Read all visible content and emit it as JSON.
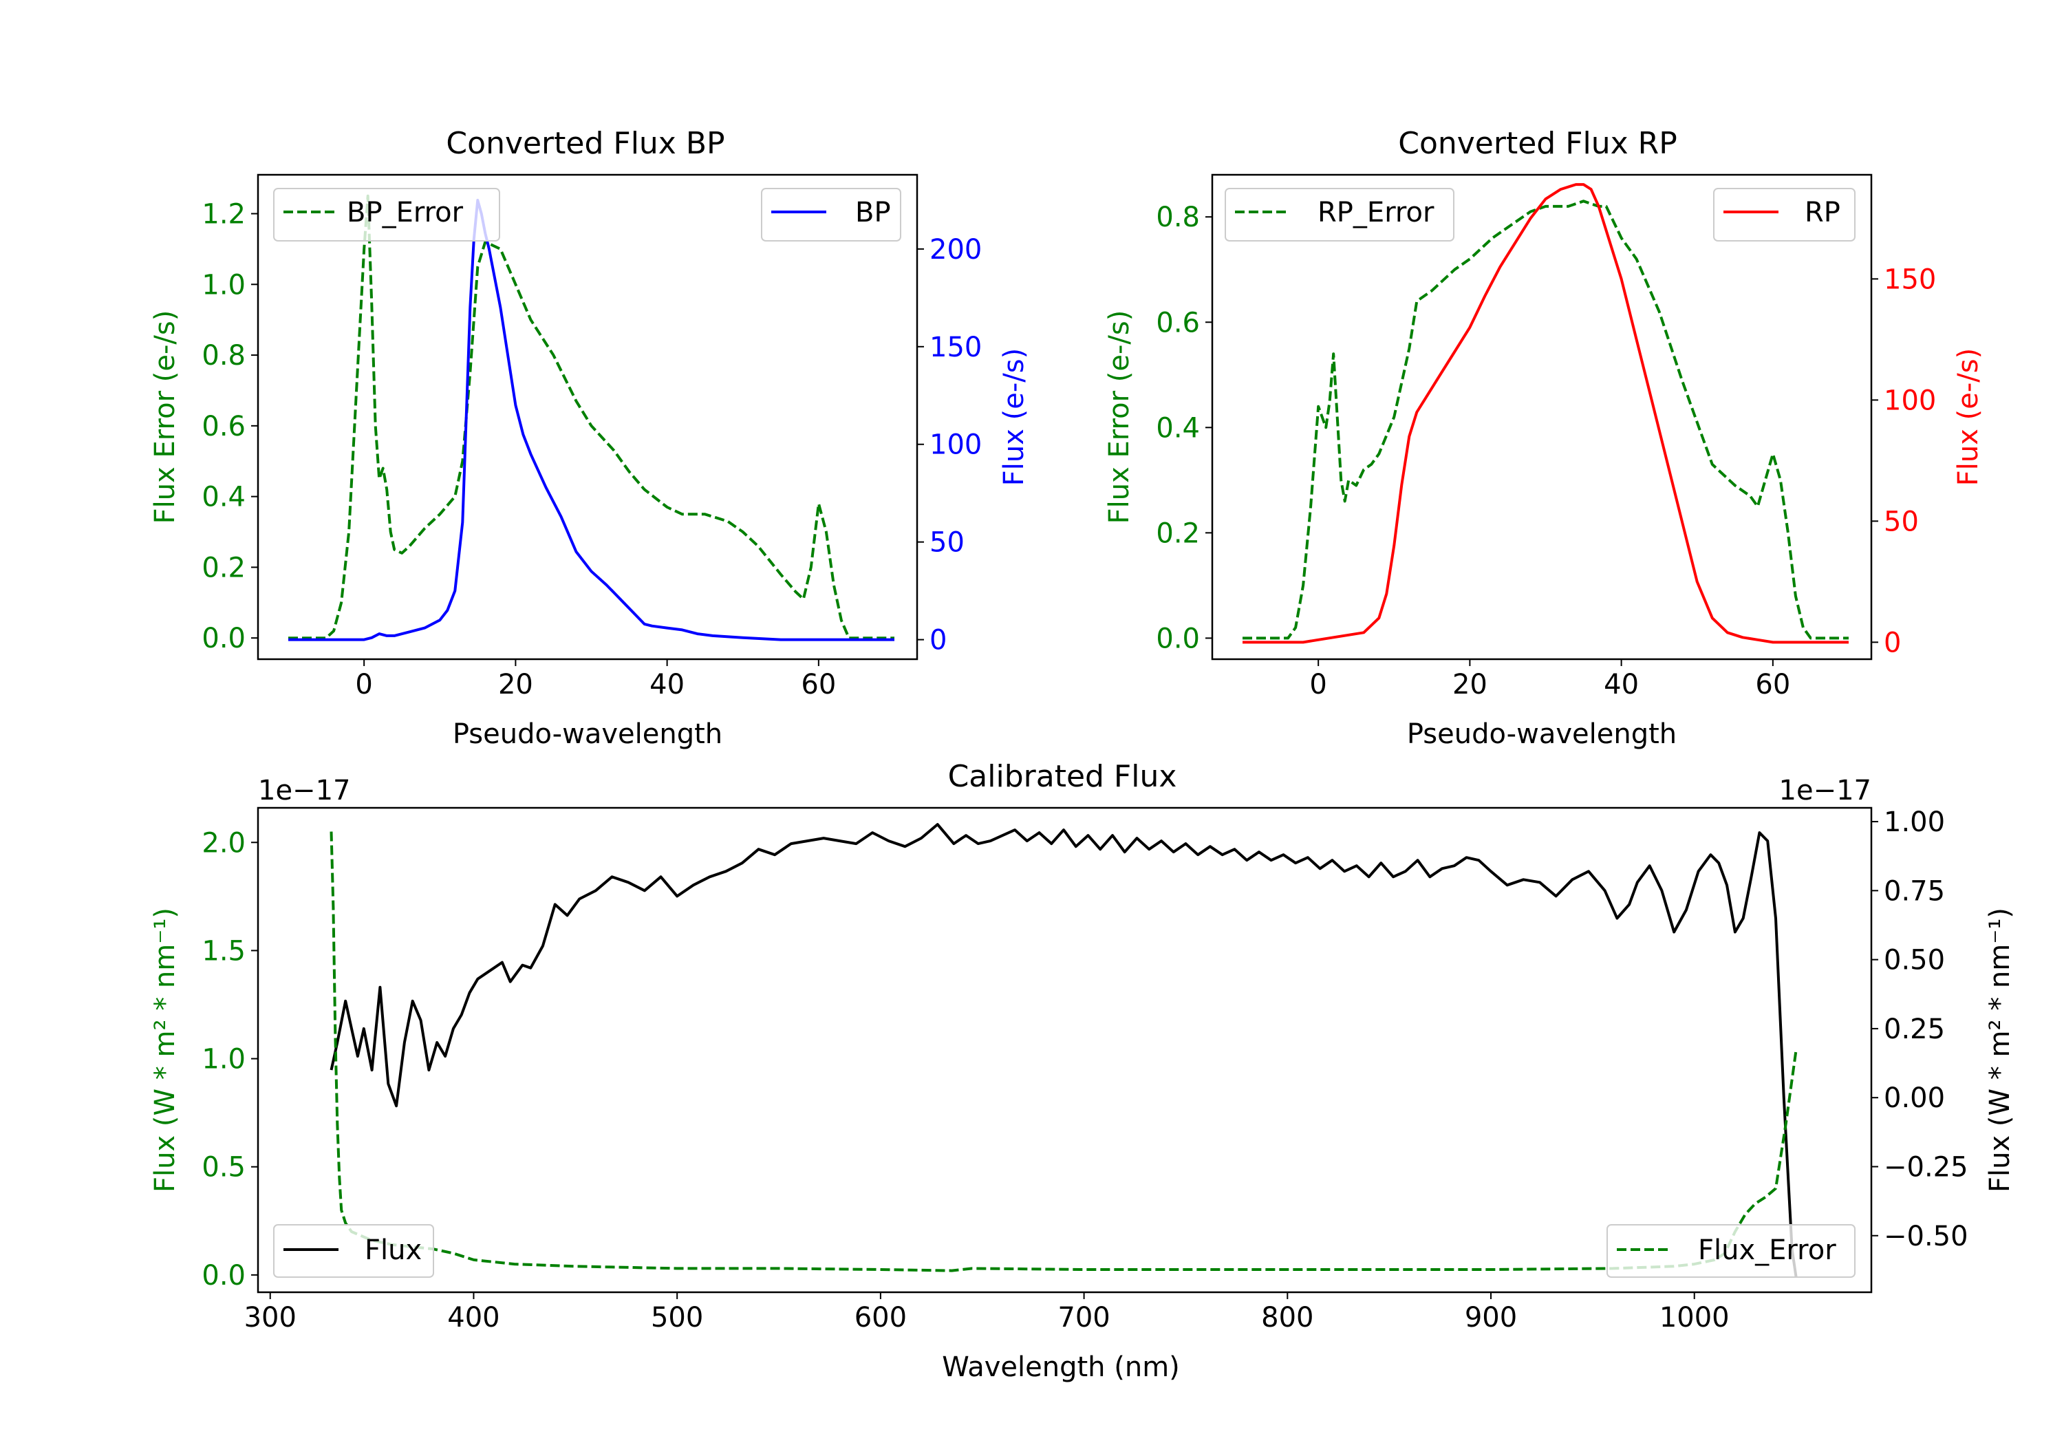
{
  "chart_data": [
    {
      "type": "line",
      "title": "Converted Flux BP",
      "xlabel": "Pseudo-wavelength",
      "ylabel_left": "Flux Error (e-/s)",
      "ylabel_right": "Flux (e-/s)",
      "xlim": [
        -14,
        73
      ],
      "ylim_left": [
        -0.06,
        1.31
      ],
      "ylim_right": [
        -10,
        238
      ],
      "xticks": [
        0,
        20,
        40,
        60
      ],
      "xtick_labels": [
        "0",
        "20",
        "40",
        "60"
      ],
      "yticks_left": [
        0.0,
        0.2,
        0.4,
        0.6,
        0.8,
        1.0,
        1.2
      ],
      "yticks_left_labels": [
        "0.0",
        "0.2",
        "0.4",
        "0.6",
        "0.8",
        "1.0",
        "1.2"
      ],
      "yticks_right": [
        0,
        50,
        100,
        150,
        200
      ],
      "yticks_right_labels": [
        "0",
        "50",
        "100",
        "150",
        "200"
      ],
      "legend_left": "upper-left",
      "legend_right": "upper-right",
      "series": [
        {
          "name": "BP_Error",
          "axis": "left",
          "color": "#008000",
          "style": "dashed",
          "x": [
            -10,
            -5,
            -4,
            -3,
            -2,
            -1,
            0,
            0.5,
            1,
            1.5,
            2,
            2.5,
            3,
            3.5,
            4,
            5,
            6,
            8,
            10,
            12,
            13,
            14,
            15,
            16,
            18,
            20,
            22,
            25,
            28,
            30,
            33,
            35,
            37,
            40,
            42,
            45,
            48,
            50,
            52,
            55,
            57,
            58,
            59,
            60,
            61,
            62,
            63,
            64,
            66,
            70
          ],
          "values": [
            0,
            0,
            0.02,
            0.1,
            0.3,
            0.7,
            1.1,
            1.25,
            0.95,
            0.6,
            0.45,
            0.48,
            0.42,
            0.3,
            0.25,
            0.24,
            0.26,
            0.31,
            0.35,
            0.4,
            0.5,
            0.75,
            1.05,
            1.12,
            1.1,
            1.0,
            0.9,
            0.8,
            0.67,
            0.6,
            0.53,
            0.47,
            0.42,
            0.37,
            0.35,
            0.35,
            0.33,
            0.3,
            0.26,
            0.18,
            0.13,
            0.11,
            0.2,
            0.38,
            0.3,
            0.15,
            0.05,
            0,
            0,
            0
          ]
        },
        {
          "name": "BP",
          "axis": "right",
          "color": "#0000ff",
          "style": "solid",
          "x": [
            -10,
            -5,
            0,
            1,
            2,
            3,
            4,
            6,
            8,
            10,
            11,
            12,
            13,
            14,
            14.5,
            15,
            15.5,
            16,
            16.5,
            17,
            18,
            19,
            20,
            21,
            22,
            24,
            26,
            28,
            30,
            32,
            34,
            36,
            37,
            38,
            40,
            42,
            44,
            46,
            50,
            55,
            58,
            60,
            65,
            70
          ],
          "values": [
            0,
            0,
            0,
            1,
            3,
            2,
            2,
            4,
            6,
            10,
            15,
            25,
            60,
            170,
            205,
            225,
            218,
            208,
            200,
            190,
            170,
            145,
            120,
            105,
            95,
            78,
            63,
            45,
            35,
            28,
            20,
            12,
            8,
            7,
            6,
            5,
            3,
            2,
            1,
            0,
            0,
            0,
            0,
            0
          ]
        }
      ]
    },
    {
      "type": "line",
      "title": "Converted Flux RP",
      "xlabel": "Pseudo-wavelength",
      "ylabel_left": "Flux Error (e-/s)",
      "ylabel_right": "Flux (e-/s)",
      "xlim": [
        -14,
        73
      ],
      "ylim_left": [
        -0.04,
        0.88
      ],
      "ylim_right": [
        -7,
        193
      ],
      "xticks": [
        0,
        20,
        40,
        60
      ],
      "xtick_labels": [
        "0",
        "20",
        "40",
        "60"
      ],
      "yticks_left": [
        0.0,
        0.2,
        0.4,
        0.6,
        0.8
      ],
      "yticks_left_labels": [
        "0.0",
        "0.2",
        "0.4",
        "0.6",
        "0.8"
      ],
      "yticks_right": [
        0,
        50,
        100,
        150
      ],
      "yticks_right_labels": [
        "0",
        "50",
        "100",
        "150"
      ],
      "legend_left": "upper-left",
      "legend_right": "upper-right",
      "series": [
        {
          "name": "RP_Error",
          "axis": "left",
          "color": "#008000",
          "style": "dashed",
          "x": [
            -10,
            -4,
            -3,
            -2,
            -1,
            0,
            0.5,
            1,
            1.5,
            2,
            2.5,
            3,
            3.5,
            4,
            5,
            6,
            7,
            8,
            10,
            12,
            13,
            15,
            18,
            20,
            23,
            25,
            28,
            30,
            33,
            35,
            37,
            38,
            40,
            42,
            45,
            48,
            50,
            52,
            55,
            57,
            58,
            59,
            60,
            61,
            62,
            63,
            64,
            65,
            70
          ],
          "values": [
            0,
            0,
            0.02,
            0.1,
            0.25,
            0.44,
            0.42,
            0.4,
            0.45,
            0.54,
            0.42,
            0.3,
            0.26,
            0.3,
            0.29,
            0.32,
            0.33,
            0.35,
            0.42,
            0.55,
            0.64,
            0.66,
            0.7,
            0.72,
            0.76,
            0.78,
            0.81,
            0.82,
            0.82,
            0.83,
            0.82,
            0.82,
            0.76,
            0.72,
            0.62,
            0.49,
            0.41,
            0.33,
            0.29,
            0.27,
            0.25,
            0.3,
            0.35,
            0.3,
            0.2,
            0.08,
            0.02,
            0,
            0
          ]
        },
        {
          "name": "RP",
          "axis": "right",
          "color": "#ff0000",
          "style": "solid",
          "x": [
            -10,
            -4,
            -2,
            0,
            2,
            4,
            6,
            8,
            9,
            10,
            11,
            12,
            13,
            14,
            16,
            18,
            20,
            22,
            24,
            26,
            28,
            30,
            32,
            34,
            35,
            36,
            37,
            38,
            40,
            42,
            44,
            46,
            48,
            50,
            52,
            54,
            56,
            58,
            60,
            65,
            70
          ],
          "values": [
            0,
            0,
            0,
            1,
            2,
            3,
            4,
            10,
            20,
            40,
            65,
            85,
            95,
            100,
            110,
            120,
            130,
            143,
            155,
            165,
            175,
            183,
            187,
            189,
            189,
            187,
            180,
            170,
            150,
            125,
            100,
            75,
            50,
            25,
            10,
            4,
            2,
            1,
            0,
            0,
            0
          ]
        }
      ]
    },
    {
      "type": "line",
      "title": "Calibrated Flux",
      "xlabel": "Wavelength (nm)",
      "ylabel_left": "Flux (W * m² * nm⁻¹)",
      "ylabel_right": "Flux (W * m² * nm⁻¹)",
      "offset_left": "1e−17",
      "offset_right": "1e−17",
      "xlim": [
        294,
        1087
      ],
      "ylim_left": [
        -0.08,
        2.16
      ],
      "ylim_right": [
        -0.705,
        1.05
      ],
      "xticks": [
        300,
        400,
        500,
        600,
        700,
        800,
        900,
        1000
      ],
      "xtick_labels": [
        "300",
        "400",
        "500",
        "600",
        "700",
        "800",
        "900",
        "1000"
      ],
      "yticks_left": [
        0.0,
        0.5,
        1.0,
        1.5,
        2.0
      ],
      "yticks_left_labels": [
        "0.0",
        "0.5",
        "1.0",
        "1.5",
        "2.0"
      ],
      "yticks_right": [
        -0.5,
        -0.25,
        0.0,
        0.25,
        0.5,
        0.75,
        1.0
      ],
      "yticks_right_labels": [
        "−0.50",
        "−0.25",
        "0.00",
        "0.25",
        "0.50",
        "0.75",
        "1.00"
      ],
      "legend_left": "lower-left",
      "legend_right": "lower-right",
      "series": [
        {
          "name": "Flux",
          "axis": "right",
          "color": "#000000",
          "style": "solid",
          "x": [
            330,
            333,
            337,
            340,
            343,
            346,
            350,
            354,
            358,
            362,
            366,
            370,
            374,
            378,
            382,
            386,
            390,
            394,
            398,
            402,
            408,
            414,
            418,
            424,
            428,
            434,
            440,
            446,
            452,
            460,
            468,
            476,
            484,
            492,
            500,
            508,
            516,
            524,
            532,
            540,
            548,
            556,
            564,
            572,
            580,
            588,
            596,
            604,
            612,
            620,
            628,
            636,
            642,
            648,
            654,
            660,
            666,
            672,
            678,
            684,
            690,
            696,
            702,
            708,
            714,
            720,
            726,
            732,
            738,
            744,
            750,
            756,
            762,
            768,
            774,
            780,
            786,
            792,
            798,
            804,
            810,
            816,
            822,
            828,
            834,
            840,
            846,
            852,
            858,
            864,
            870,
            876,
            882,
            888,
            894,
            900,
            908,
            916,
            924,
            932,
            940,
            948,
            956,
            962,
            968,
            972,
            978,
            984,
            990,
            996,
            1002,
            1008,
            1012,
            1016,
            1020,
            1024,
            1028,
            1032,
            1036,
            1040,
            1044,
            1048,
            1050
          ],
          "values": [
            0.1,
            0.2,
            0.35,
            0.25,
            0.15,
            0.25,
            0.1,
            0.4,
            0.05,
            -0.03,
            0.2,
            0.35,
            0.28,
            0.1,
            0.2,
            0.15,
            0.25,
            0.3,
            0.38,
            0.43,
            0.46,
            0.49,
            0.42,
            0.48,
            0.47,
            0.55,
            0.7,
            0.66,
            0.72,
            0.75,
            0.8,
            0.78,
            0.75,
            0.8,
            0.73,
            0.77,
            0.8,
            0.82,
            0.85,
            0.9,
            0.88,
            0.92,
            0.93,
            0.94,
            0.93,
            0.92,
            0.96,
            0.93,
            0.91,
            0.94,
            0.99,
            0.92,
            0.95,
            0.92,
            0.93,
            0.95,
            0.97,
            0.93,
            0.96,
            0.92,
            0.97,
            0.91,
            0.95,
            0.9,
            0.95,
            0.89,
            0.94,
            0.9,
            0.93,
            0.89,
            0.92,
            0.88,
            0.91,
            0.88,
            0.9,
            0.86,
            0.89,
            0.86,
            0.88,
            0.85,
            0.87,
            0.83,
            0.86,
            0.82,
            0.84,
            0.8,
            0.85,
            0.8,
            0.82,
            0.86,
            0.8,
            0.83,
            0.84,
            0.87,
            0.86,
            0.82,
            0.77,
            0.79,
            0.78,
            0.73,
            0.79,
            0.82,
            0.75,
            0.65,
            0.7,
            0.78,
            0.84,
            0.75,
            0.6,
            0.68,
            0.82,
            0.88,
            0.85,
            0.77,
            0.6,
            0.65,
            0.8,
            0.96,
            0.93,
            0.65,
            0.0,
            -0.55,
            -0.65
          ]
        },
        {
          "name": "Flux_Error",
          "axis": "left",
          "color": "#008000",
          "style": "dashed",
          "x": [
            330,
            331,
            332,
            333,
            334,
            335,
            337,
            340,
            345,
            350,
            355,
            360,
            370,
            380,
            390,
            400,
            420,
            450,
            500,
            550,
            600,
            635,
            645,
            700,
            800,
            900,
            960,
            990,
            1000,
            1010,
            1015,
            1020,
            1025,
            1030,
            1035,
            1040,
            1045,
            1050
          ],
          "values": [
            2.05,
            1.7,
            1.1,
            0.7,
            0.45,
            0.3,
            0.24,
            0.2,
            0.18,
            0.16,
            0.15,
            0.14,
            0.13,
            0.12,
            0.1,
            0.07,
            0.05,
            0.04,
            0.03,
            0.03,
            0.025,
            0.02,
            0.03,
            0.025,
            0.025,
            0.025,
            0.03,
            0.04,
            0.05,
            0.07,
            0.1,
            0.2,
            0.28,
            0.33,
            0.36,
            0.4,
            0.7,
            1.04
          ]
        }
      ]
    }
  ]
}
